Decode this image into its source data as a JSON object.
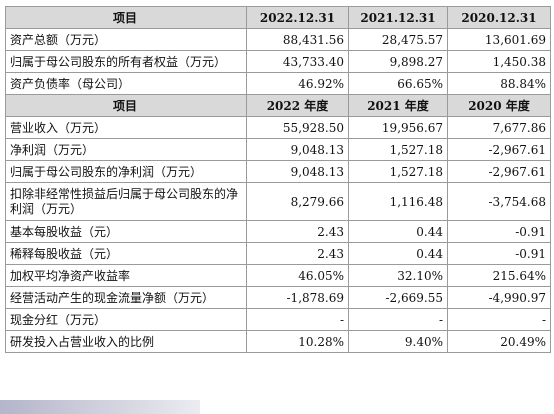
{
  "header1": {
    "item": "项目",
    "c1": "2022.12.31",
    "c2": "2021.12.31",
    "c3": "2020.12.31"
  },
  "rows1": [
    {
      "label": "资产总额（万元）",
      "v1": "88,431.56",
      "v2": "28,475.57",
      "v3": "13,601.69"
    },
    {
      "label": "归属于母公司股东的所有者权益（万元）",
      "v1": "43,733.40",
      "v2": "9,898.27",
      "v3": "1,450.38"
    },
    {
      "label": "资产负债率（母公司）",
      "v1": "46.92%",
      "v2": "66.65%",
      "v3": "88.84%"
    }
  ],
  "header2": {
    "item": "项目",
    "c1": "2022 年度",
    "c2": "2021 年度",
    "c3": "2020 年度"
  },
  "rows2": [
    {
      "label": "营业收入（万元）",
      "v1": "55,928.50",
      "v2": "19,956.67",
      "v3": "7,677.86"
    },
    {
      "label": "净利润（万元）",
      "v1": "9,048.13",
      "v2": "1,527.18",
      "v3": "-2,967.61"
    },
    {
      "label": "归属于母公司股东的净利润（万元）",
      "v1": "9,048.13",
      "v2": "1,527.18",
      "v3": "-2,967.61"
    },
    {
      "label": "扣除非经常性损益后归属于母公司股东的净利润（万元）",
      "v1": "8,279.66",
      "v2": "1,116.48",
      "v3": "-3,754.68"
    },
    {
      "label": "基本每股收益（元）",
      "v1": "2.43",
      "v2": "0.44",
      "v3": "-0.91"
    },
    {
      "label": "稀释每股收益（元）",
      "v1": "2.43",
      "v2": "0.44",
      "v3": "-0.91"
    },
    {
      "label": "加权平均净资产收益率",
      "v1": "46.05%",
      "v2": "32.10%",
      "v3": "215.64%"
    },
    {
      "label": "经营活动产生的现金流量净额（万元）",
      "v1": "-1,878.69",
      "v2": "-2,669.55",
      "v3": "-4,990.97"
    },
    {
      "label": "现金分红（万元）",
      "v1": "-",
      "v2": "-",
      "v3": "-"
    },
    {
      "label": "研发投入占营业收入的比例",
      "v1": "10.28%",
      "v2": "9.40%",
      "v3": "20.49%"
    }
  ]
}
